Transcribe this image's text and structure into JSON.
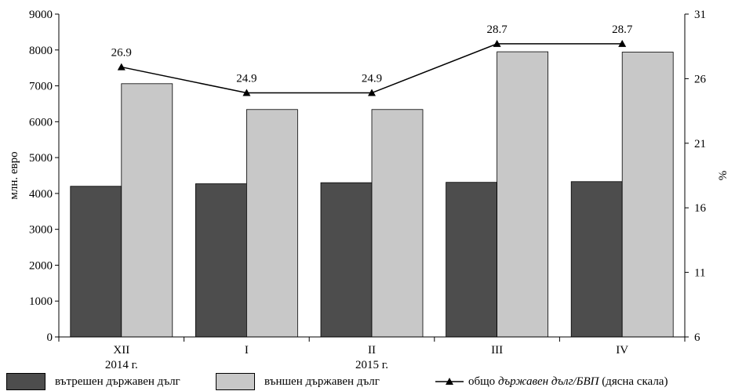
{
  "chart_data": {
    "type": "bar",
    "categories": [
      "XII",
      "I",
      "II",
      "III",
      "IV"
    ],
    "year_labels": [
      {
        "text": "2014 г.",
        "under": "XII"
      },
      {
        "text": "2015 г.",
        "under": "II"
      }
    ],
    "series": [
      {
        "name": "вътрешен държавен дълг",
        "axis": "left",
        "color": "#4d4d4d",
        "values": [
          4200,
          4270,
          4300,
          4310,
          4330
        ]
      },
      {
        "name": "външен държавен дълг",
        "axis": "left",
        "color": "#c8c8c8",
        "values": [
          7060,
          6340,
          6340,
          7950,
          7940
        ]
      }
    ],
    "line_series": {
      "name_prefix": "общо ",
      "name_italic": "държавен дълг/БВП",
      "name_suffix": " (дясна скала)",
      "axis": "right",
      "color": "#000000",
      "values": [
        26.9,
        24.9,
        24.9,
        28.7,
        28.7
      ],
      "value_labels": [
        "26.9",
        "24.9",
        "24.9",
        "28.7",
        "28.7"
      ]
    },
    "ylabel": "млн. евро",
    "y2label": "%",
    "ylim": [
      0,
      9000
    ],
    "y2lim": [
      6,
      31
    ],
    "yticks": [
      "0",
      "1000",
      "2000",
      "3000",
      "4000",
      "5000",
      "6000",
      "7000",
      "8000",
      "9000"
    ],
    "y2ticks": [
      "6",
      "11",
      "16",
      "21",
      "26",
      "31"
    ],
    "grid": false,
    "legend_position": "bottom"
  }
}
